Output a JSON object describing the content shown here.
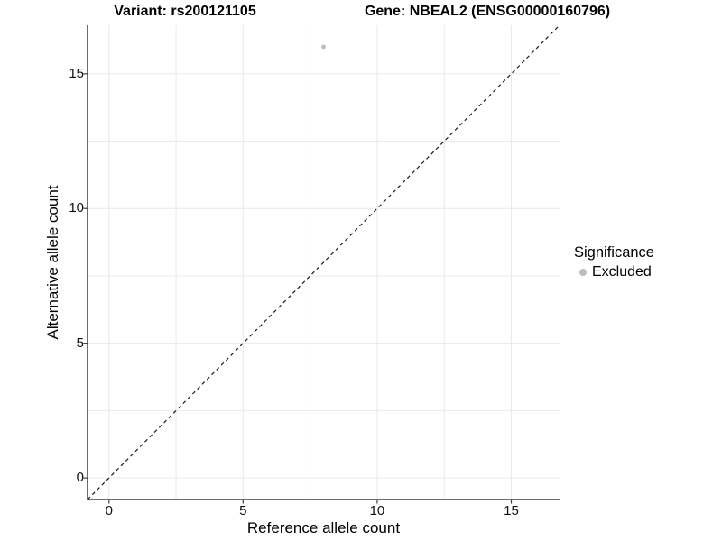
{
  "header": {
    "variant_title": "Variant: rs200121105",
    "gene_title": "Gene: NBEAL2 (ENSG00000160796)"
  },
  "chart_data": {
    "type": "scatter",
    "xlabel": "Reference allele count",
    "ylabel": "Alternative allele count",
    "xlim": [
      -0.8,
      16.8
    ],
    "ylim": [
      -0.8,
      16.8
    ],
    "x_ticks": [
      0,
      5,
      10,
      15
    ],
    "y_ticks": [
      0,
      5,
      10,
      15
    ],
    "minor_grid_step": 2.5,
    "grid": true,
    "points": [
      {
        "x": 8,
        "y": 16,
        "series": "Excluded"
      }
    ],
    "reference_line": {
      "type": "identity",
      "style": "dashed",
      "from": -0.8,
      "to": 16.8
    },
    "legend": {
      "title": "Significance",
      "position": "right",
      "entries": [
        {
          "label": "Excluded",
          "color": "#bdbdbd"
        }
      ]
    },
    "colors": {
      "excluded_point": "#bdbdbd",
      "axis_line": "#3c3c3c",
      "gridline": "#e9e9e9",
      "reference_line": "#1a1a1a"
    }
  }
}
